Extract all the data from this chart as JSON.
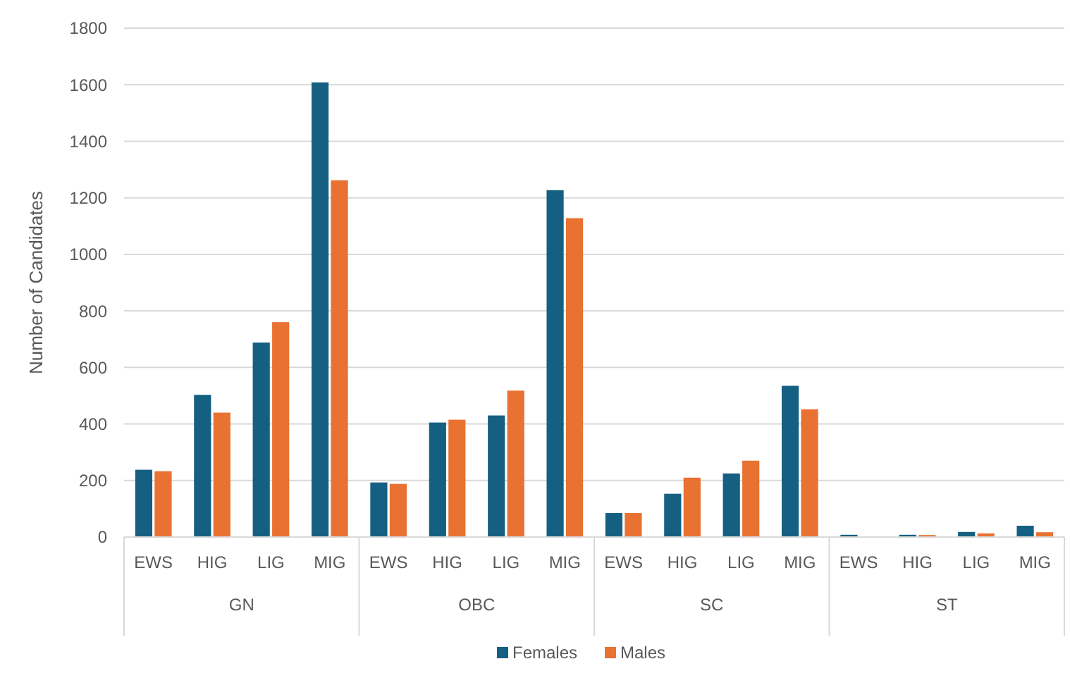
{
  "chart_data": {
    "type": "bar",
    "ylabel": "Number of Candidates",
    "categories": [
      "EWS",
      "HIG",
      "LIG",
      "MIG",
      "EWS",
      "HIG",
      "LIG",
      "MIG",
      "EWS",
      "HIG",
      "LIG",
      "MIG",
      "EWS",
      "HIG",
      "LIG",
      "MIG"
    ],
    "annotations": [
      "GN",
      "OBC",
      "SC",
      "ST"
    ],
    "series": [
      {
        "name": "Females",
        "color": "#156082",
        "values": [
          238,
          503,
          688,
          1608,
          193,
          405,
          430,
          1227,
          85,
          153,
          225,
          535,
          8,
          8,
          18,
          40
        ]
      },
      {
        "name": "Males",
        "color": "#e97132",
        "values": [
          233,
          440,
          760,
          1262,
          188,
          415,
          518,
          1128,
          85,
          210,
          270,
          452,
          0,
          7,
          13,
          17
        ]
      }
    ],
    "ylim": [
      0,
      1800
    ],
    "yticks": [
      0,
      200,
      400,
      600,
      800,
      1000,
      1200,
      1400,
      1600,
      1800
    ],
    "grid": "y",
    "legend": "bottom"
  }
}
